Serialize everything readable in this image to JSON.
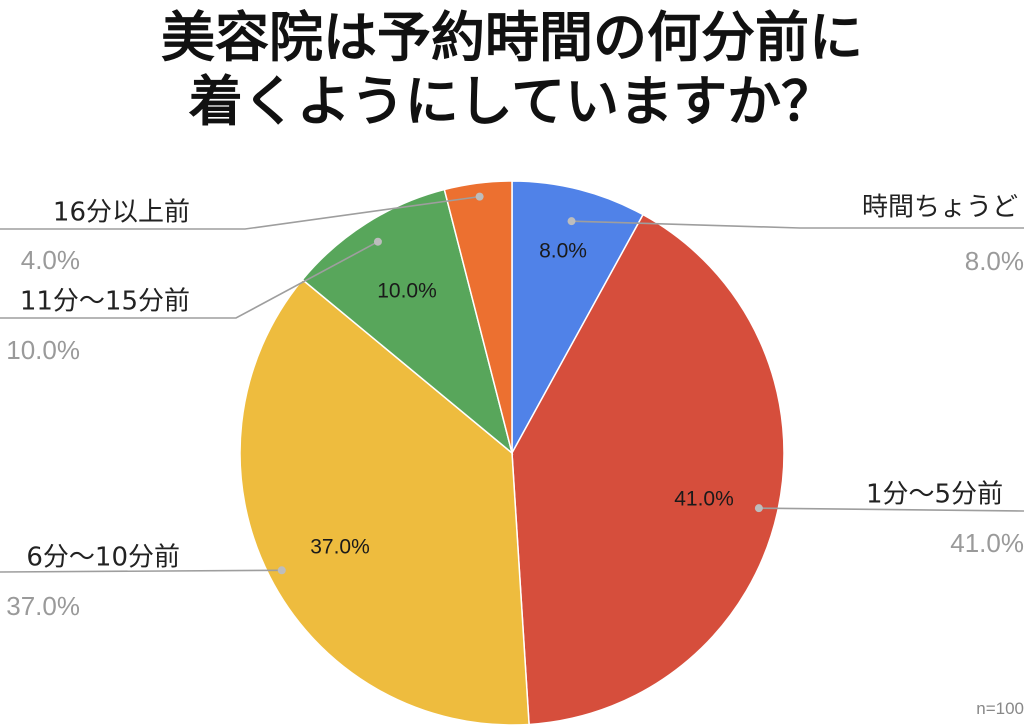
{
  "title_lines": [
    "美容院は予約時間の何分前に",
    "着くようにしていますか？"
  ],
  "note": "n=100",
  "chart_data": {
    "type": "pie",
    "title": "美容院は予約時間の何分前に着くようにしていますか？",
    "start": "12 o'clock, clockwise",
    "slices": [
      {
        "label": "時間ちょうど",
        "display_label": "時間ちょうど",
        "value": 8.0,
        "inner_label": "8.0%",
        "outer_pct": "8.0%",
        "color": "#5082e8"
      },
      {
        "label": "1分〜5分前",
        "display_label": "1分〜5分前",
        "value": 41.0,
        "inner_label": "41.0%",
        "outer_pct": "41.0%",
        "color": "#d64e3c"
      },
      {
        "label": "6分〜10分前",
        "display_label": "6分〜10分前",
        "value": 37.0,
        "inner_label": "37.0%",
        "outer_pct": "37.0%",
        "color": "#eebc3e"
      },
      {
        "label": "11分〜15分前",
        "display_label": "11分〜15分前",
        "value": 10.0,
        "inner_label": "10.0%",
        "outer_pct": "10.0%",
        "color": "#58a65b"
      },
      {
        "label": "16分以上前",
        "display_label": "16分以上前",
        "value": 4.0,
        "inner_label": "",
        "outer_pct": "4.0%",
        "color": "#ec7030"
      }
    ]
  }
}
